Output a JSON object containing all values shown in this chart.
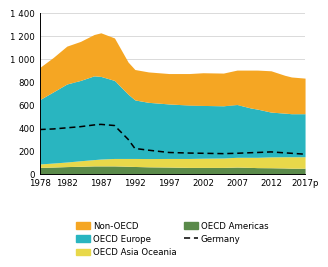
{
  "years": [
    1978,
    1980,
    1982,
    1984,
    1986,
    1987,
    1989,
    1991,
    1992,
    1994,
    1997,
    2000,
    2002,
    2005,
    2007,
    2009,
    2010,
    2012,
    2014,
    2015,
    2017
  ],
  "oecd_americas": [
    55,
    58,
    62,
    65,
    68,
    68,
    68,
    65,
    63,
    60,
    58,
    55,
    55,
    55,
    58,
    55,
    53,
    52,
    50,
    48,
    48
  ],
  "oecd_asia_oceania": [
    30,
    35,
    40,
    48,
    55,
    60,
    65,
    68,
    70,
    72,
    75,
    78,
    80,
    82,
    85,
    88,
    90,
    95,
    98,
    100,
    100
  ],
  "oecd_europe": [
    560,
    620,
    680,
    700,
    730,
    720,
    680,
    560,
    510,
    490,
    475,
    465,
    460,
    455,
    460,
    430,
    420,
    390,
    380,
    375,
    375
  ],
  "non_oecd": [
    280,
    300,
    330,
    340,
    360,
    380,
    370,
    280,
    265,
    265,
    265,
    275,
    285,
    285,
    300,
    330,
    340,
    360,
    330,
    320,
    310
  ],
  "germany": [
    385,
    390,
    400,
    410,
    425,
    430,
    420,
    300,
    220,
    205,
    185,
    180,
    178,
    175,
    178,
    183,
    185,
    190,
    182,
    178,
    170
  ],
  "colors": {
    "oecd_americas": "#5a8a4a",
    "oecd_asia_oceania": "#e8d84a",
    "oecd_europe": "#29b5c0",
    "non_oecd": "#f5a623"
  },
  "ylim": [
    0,
    1400
  ],
  "yticks": [
    0,
    200,
    400,
    600,
    800,
    1000,
    1200,
    1400
  ],
  "xlabel_years": [
    "1978",
    "1982",
    "1987",
    "1992",
    "1997",
    "2002",
    "2007",
    "2012",
    "2017p"
  ],
  "xlabel_vals": [
    1978,
    1982,
    1987,
    1992,
    1997,
    2002,
    2007,
    2012,
    2017
  ],
  "legend_order": [
    "non_oecd",
    "oecd_europe",
    "oecd_asia_oceania",
    "oecd_americas",
    "germany"
  ],
  "legend_labels": [
    "Non-OECD",
    "OECD Europe",
    "OECD Asia Oceania",
    "OECD Americas",
    "Germany"
  ]
}
